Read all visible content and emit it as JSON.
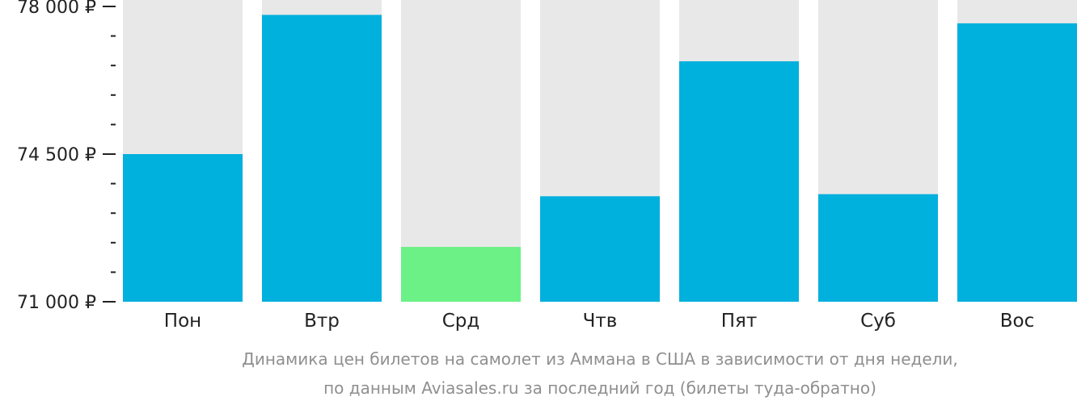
{
  "chart_data": {
    "type": "bar",
    "categories": [
      "Пон",
      "Втр",
      "Срд",
      "Чтв",
      "Пят",
      "Суб",
      "Вос"
    ],
    "values": [
      74500,
      77800,
      72300,
      73500,
      76700,
      73550,
      77600
    ],
    "ylim": [
      71000,
      78000
    ],
    "y_major_ticks": [
      71000,
      74500,
      78000
    ],
    "y_major_tick_labels": [
      "71 000 ₽",
      "74 500 ₽",
      "78 000 ₽"
    ],
    "y_minor_step": 700,
    "highlight_index": 2,
    "grid": false,
    "colors": {
      "bar": "#00b0dd",
      "bar_highlight": "#6cf187",
      "bar_background": "#e8e8e8",
      "tick": "#222222",
      "caption": "#8f8f8f"
    },
    "caption": [
      "Динамика цен билетов на самолет из Аммана в США в зависимости от дня недели,",
      "по данным Aviasales.ru за последний год (билеты туда-обратно)"
    ]
  }
}
